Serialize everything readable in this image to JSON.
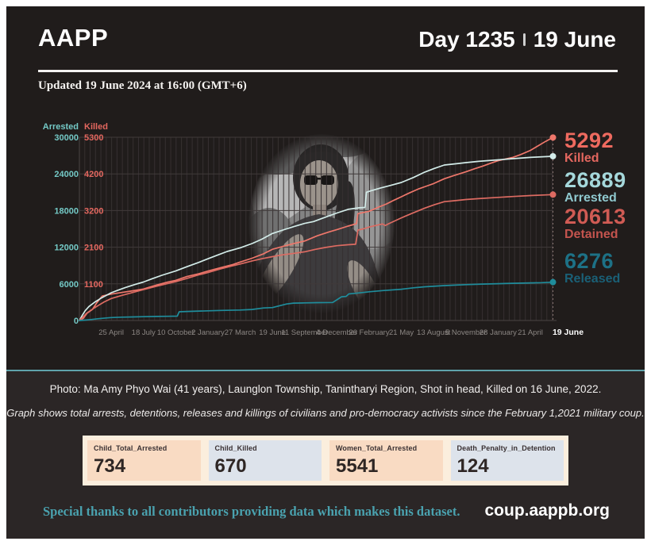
{
  "header": {
    "brand": "AAPP",
    "day_label": "Day 1235",
    "date_label": "19 June",
    "updated": "Updated 19 June 2024 at 16:00 (GMT+6)"
  },
  "chart_data": {
    "type": "line",
    "title": "Total arrests, detentions, releases and killings since the February 1, 2021 military coup",
    "x_axis": {
      "start": "1 February 2021",
      "end": "19 June 2024",
      "unit": "days since coup",
      "range": [
        0,
        1235
      ]
    },
    "axes": {
      "arrested": {
        "label": "Arrested",
        "range": [
          0,
          30000
        ],
        "color": "#74c9c6"
      },
      "killed": {
        "label": "Killed",
        "range": [
          0,
          5300
        ],
        "color": "#e4675f"
      }
    },
    "y_rows": [
      {
        "value": 30000,
        "arrested": "30000",
        "killed": "5300"
      },
      {
        "value": 24000,
        "arrested": "24000",
        "killed": "4200"
      },
      {
        "value": 18000,
        "arrested": "18000",
        "killed": "3200"
      },
      {
        "value": 12000,
        "arrested": "12000",
        "killed": "2100"
      },
      {
        "value": 6000,
        "arrested": "6000",
        "killed": "1100"
      },
      {
        "value": 0,
        "arrested": "0",
        "killed": ""
      }
    ],
    "x_ticks": [
      {
        "day": 83,
        "label": "25 April"
      },
      {
        "day": 167,
        "label": "18 July"
      },
      {
        "day": 251,
        "label": "10 October"
      },
      {
        "day": 335,
        "label": "2 January"
      },
      {
        "day": 419,
        "label": "27 March"
      },
      {
        "day": 503,
        "label": "19 June"
      },
      {
        "day": 587,
        "label": "11 September"
      },
      {
        "day": 671,
        "label": "4 December"
      },
      {
        "day": 755,
        "label": "26 February"
      },
      {
        "day": 839,
        "label": "21 May"
      },
      {
        "day": 923,
        "label": "13 August"
      },
      {
        "day": 1007,
        "label": "5 November"
      },
      {
        "day": 1091,
        "label": "28 January"
      },
      {
        "day": 1175,
        "label": "21 April"
      },
      {
        "day": 1234,
        "label": "19 June",
        "bold": true
      }
    ],
    "grid": {
      "vertical_every_days": 14,
      "color": "#363031",
      "h_color": "#403a3a"
    },
    "series": [
      {
        "name": "Killed",
        "axis": "killed",
        "color": "#ef776b",
        "final": 5292,
        "points": [
          [
            0,
            0
          ],
          [
            10,
            60
          ],
          [
            20,
            210
          ],
          [
            34,
            320
          ],
          [
            46,
            520
          ],
          [
            55,
            650
          ],
          [
            60,
            710
          ],
          [
            83,
            765
          ],
          [
            110,
            810
          ],
          [
            140,
            860
          ],
          [
            167,
            912
          ],
          [
            200,
            1020
          ],
          [
            230,
            1110
          ],
          [
            251,
            1160
          ],
          [
            280,
            1270
          ],
          [
            310,
            1350
          ],
          [
            335,
            1430
          ],
          [
            365,
            1520
          ],
          [
            400,
            1620
          ],
          [
            419,
            1690
          ],
          [
            450,
            1800
          ],
          [
            480,
            1930
          ],
          [
            503,
            2060
          ],
          [
            530,
            2140
          ],
          [
            560,
            2230
          ],
          [
            587,
            2300
          ],
          [
            620,
            2450
          ],
          [
            650,
            2560
          ],
          [
            671,
            2630
          ],
          [
            700,
            2730
          ],
          [
            722,
            2800
          ],
          [
            726,
            3090
          ],
          [
            755,
            3160
          ],
          [
            780,
            3280
          ],
          [
            800,
            3370
          ],
          [
            820,
            3480
          ],
          [
            839,
            3580
          ],
          [
            860,
            3690
          ],
          [
            885,
            3810
          ],
          [
            905,
            3890
          ],
          [
            923,
            3960
          ],
          [
            951,
            4100
          ],
          [
            975,
            4190
          ],
          [
            1007,
            4300
          ],
          [
            1030,
            4390
          ],
          [
            1050,
            4460
          ],
          [
            1070,
            4540
          ],
          [
            1091,
            4620
          ],
          [
            1110,
            4670
          ],
          [
            1130,
            4720
          ],
          [
            1150,
            4800
          ],
          [
            1175,
            4920
          ],
          [
            1195,
            5050
          ],
          [
            1215,
            5180
          ],
          [
            1234,
            5292
          ]
        ]
      },
      {
        "name": "Arrested",
        "axis": "arrested",
        "color": "#d3ece9",
        "final": 26889,
        "points": [
          [
            0,
            0
          ],
          [
            8,
            900
          ],
          [
            15,
            1600
          ],
          [
            25,
            2300
          ],
          [
            40,
            3000
          ],
          [
            55,
            3600
          ],
          [
            70,
            4100
          ],
          [
            83,
            4550
          ],
          [
            100,
            4950
          ],
          [
            120,
            5400
          ],
          [
            145,
            5900
          ],
          [
            167,
            6300
          ],
          [
            190,
            6850
          ],
          [
            215,
            7400
          ],
          [
            251,
            8100
          ],
          [
            280,
            8800
          ],
          [
            310,
            9500
          ],
          [
            335,
            10100
          ],
          [
            360,
            10700
          ],
          [
            385,
            11300
          ],
          [
            419,
            11900
          ],
          [
            450,
            12600
          ],
          [
            475,
            13300
          ],
          [
            503,
            14250
          ],
          [
            530,
            14800
          ],
          [
            560,
            15400
          ],
          [
            587,
            15900
          ],
          [
            610,
            16200
          ],
          [
            640,
            16900
          ],
          [
            671,
            17600
          ],
          [
            700,
            18200
          ],
          [
            730,
            18450
          ],
          [
            744,
            18500
          ],
          [
            748,
            21000
          ],
          [
            760,
            21250
          ],
          [
            785,
            21700
          ],
          [
            810,
            22100
          ],
          [
            839,
            22600
          ],
          [
            870,
            23400
          ],
          [
            900,
            24300
          ],
          [
            925,
            24900
          ],
          [
            951,
            25450
          ],
          [
            980,
            25650
          ],
          [
            1007,
            25850
          ],
          [
            1040,
            26050
          ],
          [
            1091,
            26300
          ],
          [
            1130,
            26500
          ],
          [
            1175,
            26700
          ],
          [
            1234,
            26889
          ]
        ]
      },
      {
        "name": "Detained",
        "axis": "arrested",
        "color": "#dd6b62",
        "final": 20613,
        "points": [
          [
            0,
            0
          ],
          [
            10,
            600
          ],
          [
            20,
            1250
          ],
          [
            35,
            1900
          ],
          [
            50,
            2500
          ],
          [
            65,
            3050
          ],
          [
            83,
            3600
          ],
          [
            110,
            4100
          ],
          [
            140,
            4600
          ],
          [
            167,
            5050
          ],
          [
            200,
            5600
          ],
          [
            230,
            6050
          ],
          [
            251,
            6350
          ],
          [
            280,
            6900
          ],
          [
            310,
            7450
          ],
          [
            335,
            7850
          ],
          [
            365,
            8400
          ],
          [
            395,
            8900
          ],
          [
            419,
            9250
          ],
          [
            450,
            9750
          ],
          [
            475,
            10100
          ],
          [
            503,
            10450
          ],
          [
            530,
            10750
          ],
          [
            560,
            11000
          ],
          [
            587,
            11250
          ],
          [
            615,
            11650
          ],
          [
            640,
            11950
          ],
          [
            671,
            12250
          ],
          [
            700,
            12400
          ],
          [
            720,
            12480
          ],
          [
            726,
            14800
          ],
          [
            740,
            15000
          ],
          [
            755,
            15300
          ],
          [
            775,
            15600
          ],
          [
            790,
            15800
          ],
          [
            797,
            15550
          ],
          [
            806,
            15850
          ],
          [
            839,
            16800
          ],
          [
            865,
            17500
          ],
          [
            900,
            18400
          ],
          [
            925,
            18950
          ],
          [
            951,
            19450
          ],
          [
            975,
            19600
          ],
          [
            1007,
            19800
          ],
          [
            1040,
            19950
          ],
          [
            1091,
            20150
          ],
          [
            1130,
            20300
          ],
          [
            1175,
            20450
          ],
          [
            1234,
            20613
          ]
        ]
      },
      {
        "name": "Released",
        "axis": "arrested",
        "color": "#1f8d9c",
        "final": 6276,
        "points": [
          [
            0,
            0
          ],
          [
            15,
            60
          ],
          [
            30,
            150
          ],
          [
            50,
            300
          ],
          [
            70,
            420
          ],
          [
            83,
            480
          ],
          [
            110,
            540
          ],
          [
            140,
            580
          ],
          [
            167,
            620
          ],
          [
            200,
            660
          ],
          [
            230,
            690
          ],
          [
            255,
            720
          ],
          [
            260,
            1430
          ],
          [
            280,
            1480
          ],
          [
            335,
            1580
          ],
          [
            370,
            1650
          ],
          [
            419,
            1720
          ],
          [
            450,
            1800
          ],
          [
            480,
            2050
          ],
          [
            503,
            2120
          ],
          [
            540,
            2700
          ],
          [
            558,
            2840
          ],
          [
            587,
            2880
          ],
          [
            620,
            2920
          ],
          [
            660,
            2950
          ],
          [
            683,
            3880
          ],
          [
            695,
            3950
          ],
          [
            702,
            4350
          ],
          [
            720,
            4450
          ],
          [
            755,
            4700
          ],
          [
            790,
            4900
          ],
          [
            839,
            5120
          ],
          [
            870,
            5350
          ],
          [
            900,
            5520
          ],
          [
            951,
            5720
          ],
          [
            1007,
            5870
          ],
          [
            1050,
            5960
          ],
          [
            1091,
            6030
          ],
          [
            1130,
            6090
          ],
          [
            1175,
            6160
          ],
          [
            1205,
            6200
          ],
          [
            1234,
            6276
          ]
        ]
      }
    ],
    "end_marker": {
      "day": 1234,
      "style": "dashed"
    }
  },
  "totals": [
    {
      "value": "5292",
      "label": "Killed",
      "color": "#ee6a5f",
      "label_color": "#e4675f"
    },
    {
      "value": "26889",
      "label": "Arrested",
      "color": "#a5d8db",
      "label_color": "#8fc9cf"
    },
    {
      "value": "20613",
      "label": "Detained",
      "color": "#d05b54",
      "label_color": "#c4544e"
    },
    {
      "value": "6276",
      "label": "Released",
      "color": "#1d7186",
      "label_color": "#1a6077"
    }
  ],
  "captions": {
    "photo": "Photo: Ma Amy Phyo Wai (41 years), Launglon Township, Tanintharyi Region, Shot in head, Killed on 16 June, 2022.",
    "graph_note": "Graph shows total arrests, detentions, releases and killings of civilians and pro-democracy activists since the February 1,2021 military coup."
  },
  "stats": [
    {
      "label": "Child_Total_Arrested",
      "value": "734"
    },
    {
      "label": "Child_Killed",
      "value": "670"
    },
    {
      "label": "Women_Total_Arrested",
      "value": "5541"
    },
    {
      "label": "Death_Penalty_in_Detention",
      "value": "124"
    }
  ],
  "footer": {
    "thanks": "Special thanks to all contributors providing data which makes this dataset.",
    "url": "coup.aappb.org"
  }
}
